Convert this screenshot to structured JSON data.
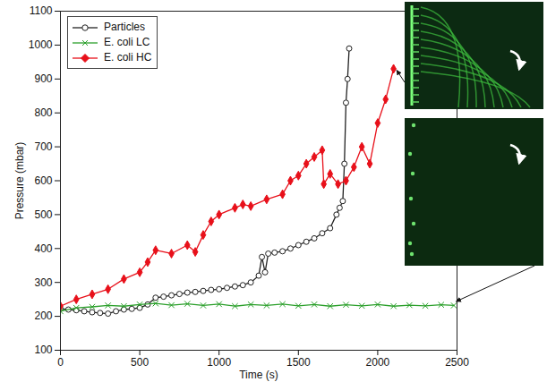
{
  "chart_data": {
    "type": "line",
    "x_label": "Time (s)",
    "y_label": "Pressure (mbar)",
    "xlim": [
      0,
      2500
    ],
    "xticks": [
      0,
      500,
      1000,
      1500,
      2000,
      2500
    ],
    "ylim": [
      100,
      1100
    ],
    "yticks": [
      100,
      200,
      300,
      400,
      500,
      600,
      700,
      800,
      900,
      1000,
      1100
    ],
    "grid": false,
    "legend": "upper left",
    "series": [
      {
        "name": "Particles",
        "color": "#222222",
        "marker": "open_circle",
        "line_style": "solid",
        "x": [
          0,
          50,
          100,
          150,
          200,
          250,
          300,
          350,
          400,
          450,
          500,
          550,
          600,
          650,
          700,
          750,
          800,
          850,
          900,
          950,
          1000,
          1050,
          1100,
          1150,
          1200,
          1250,
          1270,
          1290,
          1310,
          1350,
          1400,
          1450,
          1500,
          1550,
          1600,
          1650,
          1700,
          1740,
          1760,
          1780,
          1790,
          1800,
          1810,
          1820
        ],
        "values": [
          222,
          220,
          218,
          215,
          212,
          210,
          208,
          215,
          220,
          222,
          225,
          235,
          255,
          258,
          262,
          266,
          270,
          272,
          275,
          278,
          280,
          284,
          288,
          292,
          300,
          320,
          375,
          330,
          385,
          388,
          392,
          400,
          410,
          420,
          430,
          445,
          460,
          500,
          520,
          540,
          650,
          830,
          900,
          990
        ]
      },
      {
        "name": "E. coli LC",
        "color": "#2ca02c",
        "marker": "times",
        "line_style": "solid",
        "x": [
          0,
          100,
          200,
          300,
          400,
          500,
          600,
          700,
          800,
          900,
          1000,
          1100,
          1200,
          1300,
          1400,
          1500,
          1600,
          1700,
          1800,
          1900,
          2000,
          2100,
          2200,
          2300,
          2400,
          2480
        ],
        "values": [
          215,
          225,
          228,
          232,
          230,
          235,
          238,
          233,
          237,
          232,
          236,
          230,
          235,
          232,
          236,
          231,
          235,
          230,
          234,
          231,
          235,
          230,
          233,
          231,
          234,
          232
        ]
      },
      {
        "name": "E. coli HC",
        "color": "#e8101a",
        "marker": "diamond",
        "line_style": "solid",
        "x": [
          0,
          100,
          200,
          300,
          400,
          500,
          550,
          600,
          700,
          800,
          850,
          900,
          950,
          1000,
          1100,
          1150,
          1200,
          1300,
          1400,
          1450,
          1500,
          1550,
          1600,
          1650,
          1660,
          1700,
          1750,
          1800,
          1850,
          1900,
          1950,
          2000,
          2050,
          2100
        ],
        "values": [
          230,
          250,
          265,
          280,
          310,
          330,
          360,
          395,
          385,
          410,
          390,
          440,
          480,
          500,
          520,
          530,
          525,
          545,
          560,
          600,
          615,
          650,
          670,
          690,
          590,
          620,
          590,
          600,
          640,
          700,
          650,
          770,
          840,
          930
        ]
      }
    ]
  }
}
